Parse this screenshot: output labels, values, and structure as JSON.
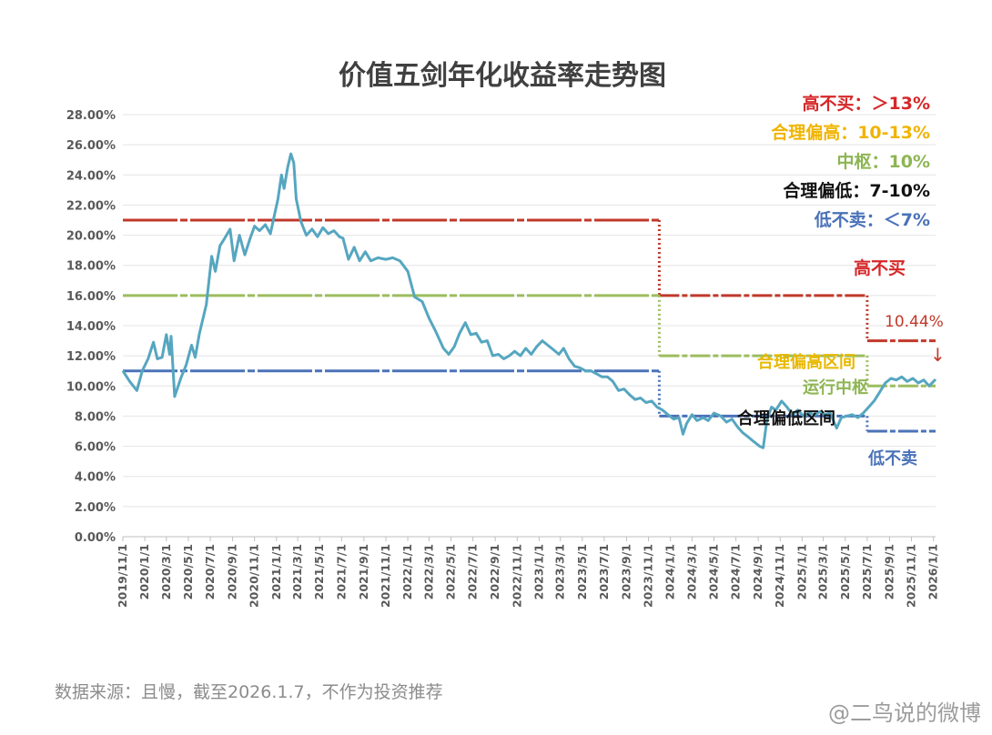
{
  "title": "价值五剑年化收益率走势图",
  "legend": [
    {
      "label": "高不买：＞13%",
      "color": "#d62728"
    },
    {
      "label": "合理偏高：10-13%",
      "color": "#f0b400"
    },
    {
      "label": "中枢：10%",
      "color": "#8db552"
    },
    {
      "label": "合理偏低：7-10%",
      "color": "#111111"
    },
    {
      "label": "低不卖：＜7%",
      "color": "#4a72b8"
    }
  ],
  "annotations": {
    "high_no_buy": "高不买",
    "current_value": "10.44%",
    "arrow": "↓",
    "reasonably_high_zone": "合理偏高区间",
    "operating_center": "运行中枢",
    "reasonably_low_zone": "合理偏低区间",
    "low_no_sell": "低不卖"
  },
  "source": "数据来源：且慢，截至2026.1.7，不作为投资推荐",
  "watermark": "@二鸟说的微博",
  "chart_data": {
    "type": "line",
    "title": "价值五剑年化收益率走势图",
    "xlabel": "",
    "ylabel": "",
    "ylim": [
      0,
      28
    ],
    "yticks": [
      "0.00%",
      "2.00%",
      "4.00%",
      "6.00%",
      "8.00%",
      "10.00%",
      "12.00%",
      "14.00%",
      "16.00%",
      "18.00%",
      "20.00%",
      "22.00%",
      "24.00%",
      "26.00%",
      "28.00%"
    ],
    "x_ticks": [
      "2019/11/1",
      "2020/1/1",
      "2020/3/1",
      "2020/5/1",
      "2020/7/1",
      "2020/9/1",
      "2020/11/1",
      "2021/1/1",
      "2021/3/1",
      "2021/5/1",
      "2021/7/1",
      "2021/9/1",
      "2021/11/1",
      "2022/1/1",
      "2022/3/1",
      "2022/5/1",
      "2022/7/1",
      "2022/9/1",
      "2022/11/1",
      "2023/1/1",
      "2023/3/1",
      "2023/5/1",
      "2023/7/1",
      "2023/9/1",
      "2023/11/1",
      "2024/1/1",
      "2024/3/1",
      "2024/5/1",
      "2024/7/1",
      "2024/9/1",
      "2024/11/1",
      "2025/1/1",
      "2025/3/1",
      "2025/5/1",
      "2025/7/1",
      "2025/9/1",
      "2025/11/1",
      "2026/1/1"
    ],
    "grid": true,
    "series": [
      {
        "name": "",
        "color": "#56a6c0",
        "points": [
          [
            "2019-11-01",
            11.0
          ],
          [
            "2019-11-20",
            10.3
          ],
          [
            "2019-12-10",
            9.7
          ],
          [
            "2019-12-25",
            11.0
          ],
          [
            "2020-01-10",
            11.8
          ],
          [
            "2020-01-25",
            12.9
          ],
          [
            "2020-02-05",
            11.8
          ],
          [
            "2020-02-18",
            11.9
          ],
          [
            "2020-03-01",
            13.4
          ],
          [
            "2020-03-10",
            12.1
          ],
          [
            "2020-03-14",
            13.3
          ],
          [
            "2020-03-24",
            9.3
          ],
          [
            "2020-04-10",
            10.5
          ],
          [
            "2020-04-25",
            11.4
          ],
          [
            "2020-05-10",
            12.7
          ],
          [
            "2020-05-20",
            11.9
          ],
          [
            "2020-06-01",
            13.5
          ],
          [
            "2020-06-20",
            15.4
          ],
          [
            "2020-07-05",
            18.6
          ],
          [
            "2020-07-15",
            17.6
          ],
          [
            "2020-07-28",
            19.3
          ],
          [
            "2020-08-10",
            19.8
          ],
          [
            "2020-08-25",
            20.4
          ],
          [
            "2020-09-05",
            18.3
          ],
          [
            "2020-09-20",
            20.0
          ],
          [
            "2020-10-05",
            18.7
          ],
          [
            "2020-10-20",
            19.8
          ],
          [
            "2020-11-01",
            20.6
          ],
          [
            "2020-11-15",
            20.3
          ],
          [
            "2020-12-01",
            20.7
          ],
          [
            "2020-12-15",
            20.1
          ],
          [
            "2021-01-05",
            22.4
          ],
          [
            "2021-01-15",
            24.0
          ],
          [
            "2021-01-22",
            23.1
          ],
          [
            "2021-02-01",
            24.5
          ],
          [
            "2021-02-10",
            25.4
          ],
          [
            "2021-02-18",
            24.8
          ],
          [
            "2021-02-25",
            22.4
          ],
          [
            "2021-03-10",
            20.9
          ],
          [
            "2021-03-25",
            20.0
          ],
          [
            "2021-04-10",
            20.4
          ],
          [
            "2021-04-25",
            19.9
          ],
          [
            "2021-05-10",
            20.5
          ],
          [
            "2021-05-25",
            20.1
          ],
          [
            "2021-06-10",
            20.3
          ],
          [
            "2021-06-25",
            19.9
          ],
          [
            "2021-07-05",
            19.8
          ],
          [
            "2021-07-20",
            18.4
          ],
          [
            "2021-08-05",
            19.2
          ],
          [
            "2021-08-20",
            18.3
          ],
          [
            "2021-09-05",
            18.9
          ],
          [
            "2021-09-20",
            18.3
          ],
          [
            "2021-10-10",
            18.5
          ],
          [
            "2021-11-01",
            18.4
          ],
          [
            "2021-11-20",
            18.5
          ],
          [
            "2021-12-10",
            18.3
          ],
          [
            "2022-01-01",
            17.6
          ],
          [
            "2022-01-20",
            15.9
          ],
          [
            "2022-02-10",
            15.6
          ],
          [
            "2022-03-01",
            14.5
          ],
          [
            "2022-03-20",
            13.6
          ],
          [
            "2022-04-10",
            12.5
          ],
          [
            "2022-04-25",
            12.1
          ],
          [
            "2022-05-10",
            12.6
          ],
          [
            "2022-05-25",
            13.5
          ],
          [
            "2022-06-10",
            14.2
          ],
          [
            "2022-06-25",
            13.4
          ],
          [
            "2022-07-10",
            13.5
          ],
          [
            "2022-07-25",
            12.9
          ],
          [
            "2022-08-10",
            13.0
          ],
          [
            "2022-08-25",
            12.0
          ],
          [
            "2022-09-10",
            12.1
          ],
          [
            "2022-09-25",
            11.8
          ],
          [
            "2022-10-10",
            12.0
          ],
          [
            "2022-10-25",
            12.3
          ],
          [
            "2022-11-10",
            12.0
          ],
          [
            "2022-11-25",
            12.5
          ],
          [
            "2022-12-10",
            12.1
          ],
          [
            "2022-12-25",
            12.6
          ],
          [
            "2023-01-10",
            13.0
          ],
          [
            "2023-01-25",
            12.7
          ],
          [
            "2023-02-10",
            12.4
          ],
          [
            "2023-02-25",
            12.1
          ],
          [
            "2023-03-10",
            12.5
          ],
          [
            "2023-03-25",
            11.8
          ],
          [
            "2023-04-10",
            11.3
          ],
          [
            "2023-04-25",
            11.2
          ],
          [
            "2023-05-10",
            11.0
          ],
          [
            "2023-05-25",
            11.0
          ],
          [
            "2023-06-10",
            10.8
          ],
          [
            "2023-06-25",
            10.6
          ],
          [
            "2023-07-10",
            10.6
          ],
          [
            "2023-07-25",
            10.3
          ],
          [
            "2023-08-10",
            9.7
          ],
          [
            "2023-08-25",
            9.8
          ],
          [
            "2023-09-10",
            9.4
          ],
          [
            "2023-09-25",
            9.1
          ],
          [
            "2023-10-10",
            9.2
          ],
          [
            "2023-10-25",
            8.9
          ],
          [
            "2023-11-10",
            9.0
          ],
          [
            "2023-11-25",
            8.6
          ],
          [
            "2023-12-10",
            8.4
          ],
          [
            "2023-12-25",
            8.1
          ],
          [
            "2024-01-10",
            7.8
          ],
          [
            "2024-01-25",
            7.9
          ],
          [
            "2024-02-05",
            6.8
          ],
          [
            "2024-02-15",
            7.5
          ],
          [
            "2024-03-01",
            8.1
          ],
          [
            "2024-03-15",
            7.7
          ],
          [
            "2024-04-01",
            7.9
          ],
          [
            "2024-04-15",
            7.7
          ],
          [
            "2024-05-01",
            8.2
          ],
          [
            "2024-05-20",
            8.0
          ],
          [
            "2024-06-05",
            7.6
          ],
          [
            "2024-06-20",
            7.8
          ],
          [
            "2024-07-05",
            7.3
          ],
          [
            "2024-07-20",
            6.9
          ],
          [
            "2024-08-05",
            6.6
          ],
          [
            "2024-08-20",
            6.3
          ],
          [
            "2024-09-05",
            6.0
          ],
          [
            "2024-09-15",
            5.9
          ],
          [
            "2024-09-25",
            7.7
          ],
          [
            "2024-10-08",
            8.6
          ],
          [
            "2024-10-20",
            8.4
          ],
          [
            "2024-11-05",
            9.0
          ],
          [
            "2024-11-20",
            8.6
          ],
          [
            "2024-12-05",
            8.1
          ],
          [
            "2024-12-20",
            8.4
          ],
          [
            "2025-01-05",
            8.0
          ],
          [
            "2025-01-20",
            8.2
          ],
          [
            "2025-02-05",
            8.1
          ],
          [
            "2025-02-20",
            8.3
          ],
          [
            "2025-03-05",
            8.1
          ],
          [
            "2025-03-20",
            8.2
          ],
          [
            "2025-04-07",
            7.2
          ],
          [
            "2025-04-20",
            7.9
          ],
          [
            "2025-05-05",
            8.0
          ],
          [
            "2025-05-20",
            8.1
          ],
          [
            "2025-06-05",
            7.9
          ],
          [
            "2025-06-20",
            8.2
          ],
          [
            "2025-07-05",
            8.6
          ],
          [
            "2025-07-20",
            9.0
          ],
          [
            "2025-08-05",
            9.6
          ],
          [
            "2025-08-20",
            10.2
          ],
          [
            "2025-09-05",
            10.5
          ],
          [
            "2025-09-20",
            10.4
          ],
          [
            "2025-10-05",
            10.6
          ],
          [
            "2025-10-20",
            10.3
          ],
          [
            "2025-11-05",
            10.5
          ],
          [
            "2025-11-20",
            10.2
          ],
          [
            "2025-12-05",
            10.4
          ],
          [
            "2025-12-20",
            10.0
          ],
          [
            "2026-01-07",
            10.44
          ]
        ]
      }
    ],
    "reference_lines": [
      {
        "color": "#c0392b",
        "segments": [
          [
            "2019-11-01",
            21.0,
            "2023-12-01",
            21.0
          ],
          [
            "2023-12-01",
            16.0,
            "2025-07-01",
            16.0
          ],
          [
            "2025-07-01",
            13.0,
            "2026-01-07",
            13.0
          ]
        ]
      },
      {
        "color": "#9cbd5e",
        "segments": [
          [
            "2019-11-01",
            16.0,
            "2023-12-01",
            16.0
          ],
          [
            "2023-12-01",
            12.0,
            "2025-07-01",
            12.0
          ],
          [
            "2025-07-01",
            10.0,
            "2026-01-07",
            10.0
          ]
        ]
      },
      {
        "color": "#4a72b8",
        "segments": [
          [
            "2019-11-01",
            11.0,
            "2023-12-01",
            11.0
          ],
          [
            "2023-12-01",
            8.0,
            "2025-07-01",
            8.0
          ],
          [
            "2025-07-01",
            7.0,
            "2026-01-07",
            7.0
          ]
        ]
      }
    ],
    "x_range": [
      "2019-11-01",
      "2026-01-07"
    ]
  }
}
